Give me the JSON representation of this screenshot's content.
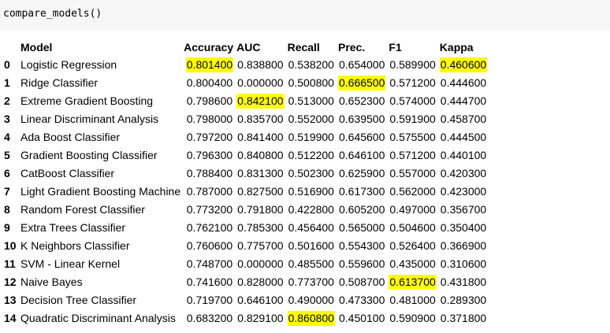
{
  "code_cell": {
    "code": "compare_models()"
  },
  "table": {
    "columns": [
      "",
      "Model",
      "Accuracy",
      "AUC",
      "Recall",
      "Prec.",
      "F1",
      "Kappa"
    ],
    "rows": [
      {
        "idx": "0",
        "model": "Logistic Regression",
        "accuracy": "0.801400",
        "auc": "0.838800",
        "recall": "0.538200",
        "prec": "0.654000",
        "f1": "0.589900",
        "kappa": "0.460600"
      },
      {
        "idx": "1",
        "model": "Ridge Classifier",
        "accuracy": "0.800400",
        "auc": "0.000000",
        "recall": "0.500800",
        "prec": "0.666500",
        "f1": "0.571200",
        "kappa": "0.444600"
      },
      {
        "idx": "2",
        "model": "Extreme Gradient Boosting",
        "accuracy": "0.798600",
        "auc": "0.842100",
        "recall": "0.513000",
        "prec": "0.652300",
        "f1": "0.574000",
        "kappa": "0.444700"
      },
      {
        "idx": "3",
        "model": "Linear Discriminant Analysis",
        "accuracy": "0.798000",
        "auc": "0.835700",
        "recall": "0.552000",
        "prec": "0.639500",
        "f1": "0.591900",
        "kappa": "0.458700"
      },
      {
        "idx": "4",
        "model": "Ada Boost Classifier",
        "accuracy": "0.797200",
        "auc": "0.841400",
        "recall": "0.519900",
        "prec": "0.645600",
        "f1": "0.575500",
        "kappa": "0.444500"
      },
      {
        "idx": "5",
        "model": "Gradient Boosting Classifier",
        "accuracy": "0.796300",
        "auc": "0.840800",
        "recall": "0.512200",
        "prec": "0.646100",
        "f1": "0.571200",
        "kappa": "0.440100"
      },
      {
        "idx": "6",
        "model": "CatBoost Classifier",
        "accuracy": "0.788400",
        "auc": "0.831300",
        "recall": "0.502300",
        "prec": "0.625900",
        "f1": "0.557000",
        "kappa": "0.420300"
      },
      {
        "idx": "7",
        "model": "Light Gradient Boosting Machine",
        "accuracy": "0.787000",
        "auc": "0.827500",
        "recall": "0.516900",
        "prec": "0.617300",
        "f1": "0.562000",
        "kappa": "0.423000"
      },
      {
        "idx": "8",
        "model": "Random Forest Classifier",
        "accuracy": "0.773200",
        "auc": "0.791800",
        "recall": "0.422800",
        "prec": "0.605200",
        "f1": "0.497000",
        "kappa": "0.356700"
      },
      {
        "idx": "9",
        "model": "Extra Trees Classifier",
        "accuracy": "0.762100",
        "auc": "0.785300",
        "recall": "0.456400",
        "prec": "0.565000",
        "f1": "0.504600",
        "kappa": "0.350400"
      },
      {
        "idx": "10",
        "model": "K Neighbors Classifier",
        "accuracy": "0.760600",
        "auc": "0.775700",
        "recall": "0.501600",
        "prec": "0.554300",
        "f1": "0.526400",
        "kappa": "0.366900"
      },
      {
        "idx": "11",
        "model": "SVM - Linear Kernel",
        "accuracy": "0.748700",
        "auc": "0.000000",
        "recall": "0.485500",
        "prec": "0.559600",
        "f1": "0.435000",
        "kappa": "0.310600"
      },
      {
        "idx": "12",
        "model": "Naive Bayes",
        "accuracy": "0.741600",
        "auc": "0.828000",
        "recall": "0.773700",
        "prec": "0.508700",
        "f1": "0.613700",
        "kappa": "0.431800"
      },
      {
        "idx": "13",
        "model": "Decision Tree Classifier",
        "accuracy": "0.719700",
        "auc": "0.646100",
        "recall": "0.490000",
        "prec": "0.473300",
        "f1": "0.481000",
        "kappa": "0.289300"
      },
      {
        "idx": "14",
        "model": "Quadratic Discriminant Analysis",
        "accuracy": "0.683200",
        "auc": "0.829100",
        "recall": "0.860800",
        "prec": "0.450100",
        "f1": "0.590900",
        "kappa": "0.371800"
      }
    ],
    "highlighted": {
      "accuracy": "0",
      "auc": "2",
      "recall": "14",
      "prec": "1",
      "f1": "12",
      "kappa": "0"
    },
    "highlight_color": "#ffff00"
  }
}
